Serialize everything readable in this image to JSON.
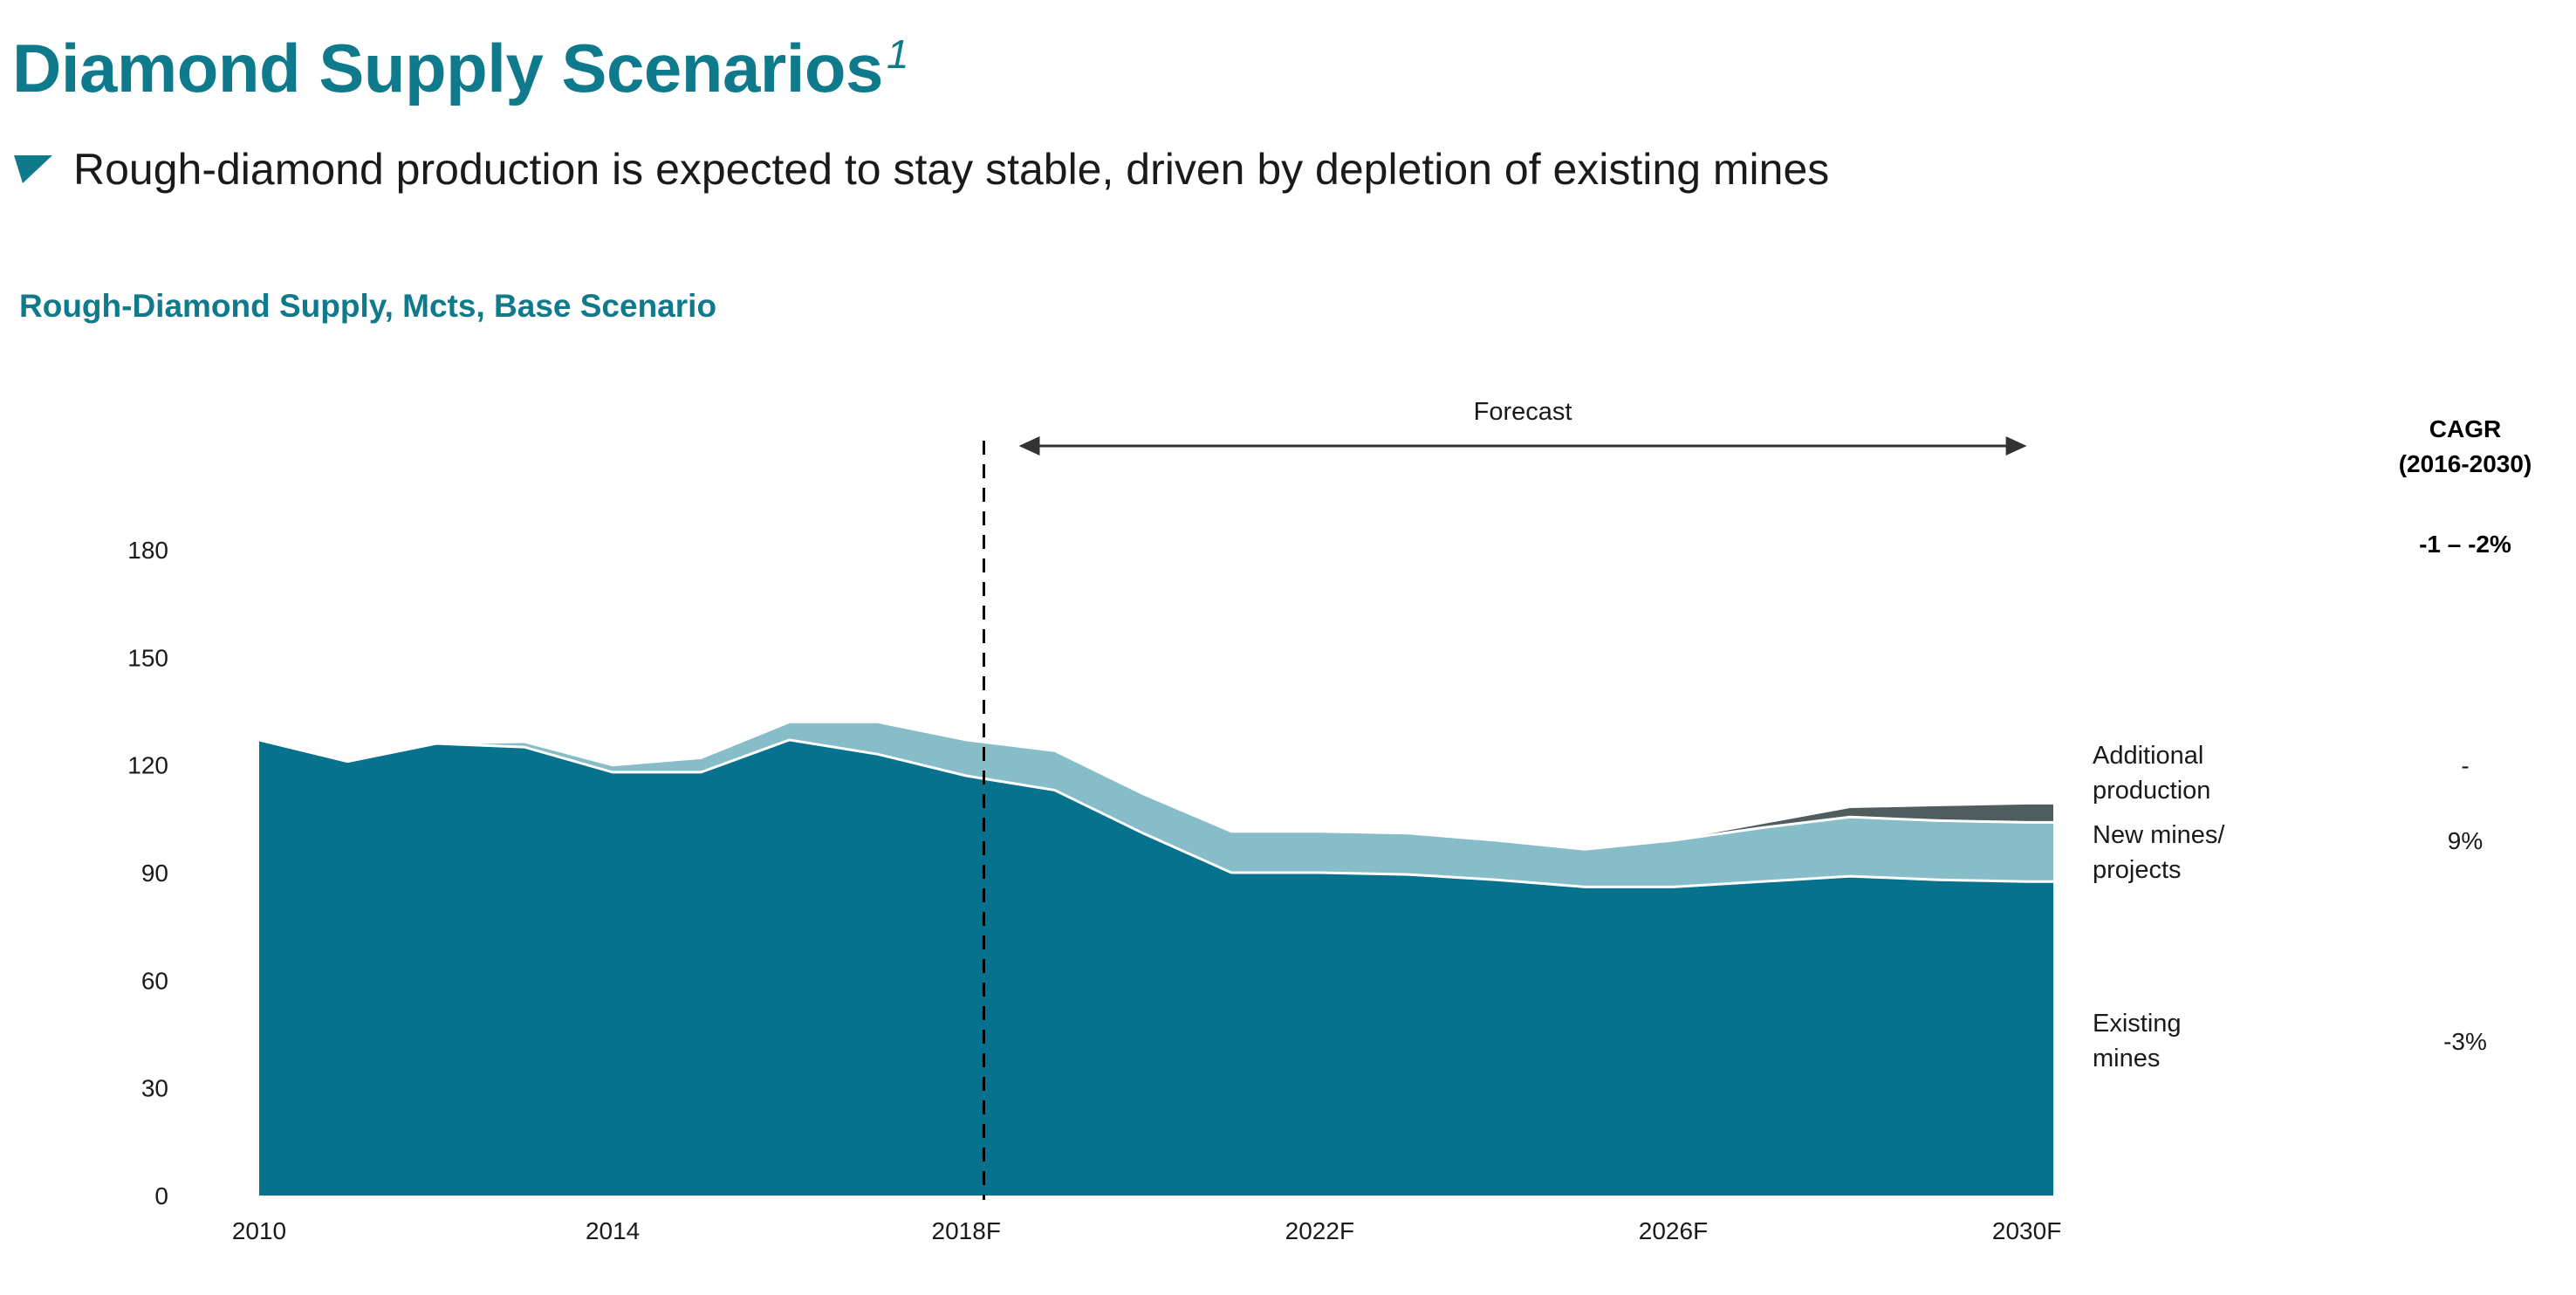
{
  "header": {
    "title": "Diamond Supply Scenarios",
    "title_superscript": "1",
    "subtitle": "Rough-diamond production is expected to stay stable, driven by depletion of existing mines"
  },
  "colors": {
    "accent": "#0e7a8c",
    "existing": "#06728e",
    "new": "#86bdc8",
    "additional": "#505d5e"
  },
  "chart_data": {
    "type": "area",
    "stacked": true,
    "title": "Rough-Diamond Supply, Mcts, Base Scenario",
    "forecast_label": "Forecast",
    "forecast_start": 2018.2,
    "forecast_end": 2030.0,
    "x": [
      2010,
      2011,
      2012,
      2013,
      2014,
      2015,
      2016,
      2017,
      2018,
      2019,
      2020,
      2021,
      2022,
      2023,
      2024,
      2025,
      2026,
      2027,
      2028,
      2029,
      2030,
      2030.3
    ],
    "x_range": [
      2010,
      2030.3
    ],
    "x_ticks": [
      {
        "value": 2010,
        "label": "2010"
      },
      {
        "value": 2014,
        "label": "2014"
      },
      {
        "value": 2018,
        "label": "2018F"
      },
      {
        "value": 2022,
        "label": "2022F"
      },
      {
        "value": 2026,
        "label": "2026F"
      },
      {
        "value": 2030,
        "label": "2030F"
      }
    ],
    "y_ticks": [
      0,
      30,
      60,
      90,
      120,
      150,
      180
    ],
    "ylim": [
      0,
      180
    ],
    "series": [
      {
        "name": "Existing mines",
        "color": "#06728e",
        "values": [
          127,
          121,
          126,
          125,
          118,
          118,
          127,
          123,
          117,
          113,
          101,
          90,
          90,
          89.5,
          88,
          86,
          86,
          87.5,
          89,
          88,
          87.5,
          87.5
        ]
      },
      {
        "name": "New mines/ projects",
        "color": "#86bdc8",
        "values": [
          0,
          0,
          0,
          1.5,
          2,
          4,
          5,
          9,
          10,
          11,
          11,
          11.5,
          11.5,
          11.5,
          11,
          10.5,
          13,
          15,
          16.5,
          16.5,
          16.5,
          16.5
        ]
      },
      {
        "name": "Additional production",
        "color": "#505d5e",
        "values": [
          0,
          0,
          0,
          0,
          0,
          0,
          0,
          0,
          0,
          0,
          0,
          0,
          0,
          0,
          0,
          0,
          0,
          1,
          2.5,
          4,
          5,
          5
        ]
      }
    ],
    "legend": [
      {
        "label_lines": [
          "Additional",
          "production"
        ],
        "cagr": "-"
      },
      {
        "label_lines": [
          "New mines/",
          "projects"
        ],
        "cagr": "9%"
      },
      {
        "label_lines": [
          "Existing",
          "mines"
        ],
        "cagr": "-3%"
      }
    ],
    "cagr_header": [
      "CAGR",
      "(2016-2030)"
    ],
    "cagr_total": "-1 – -2%"
  }
}
